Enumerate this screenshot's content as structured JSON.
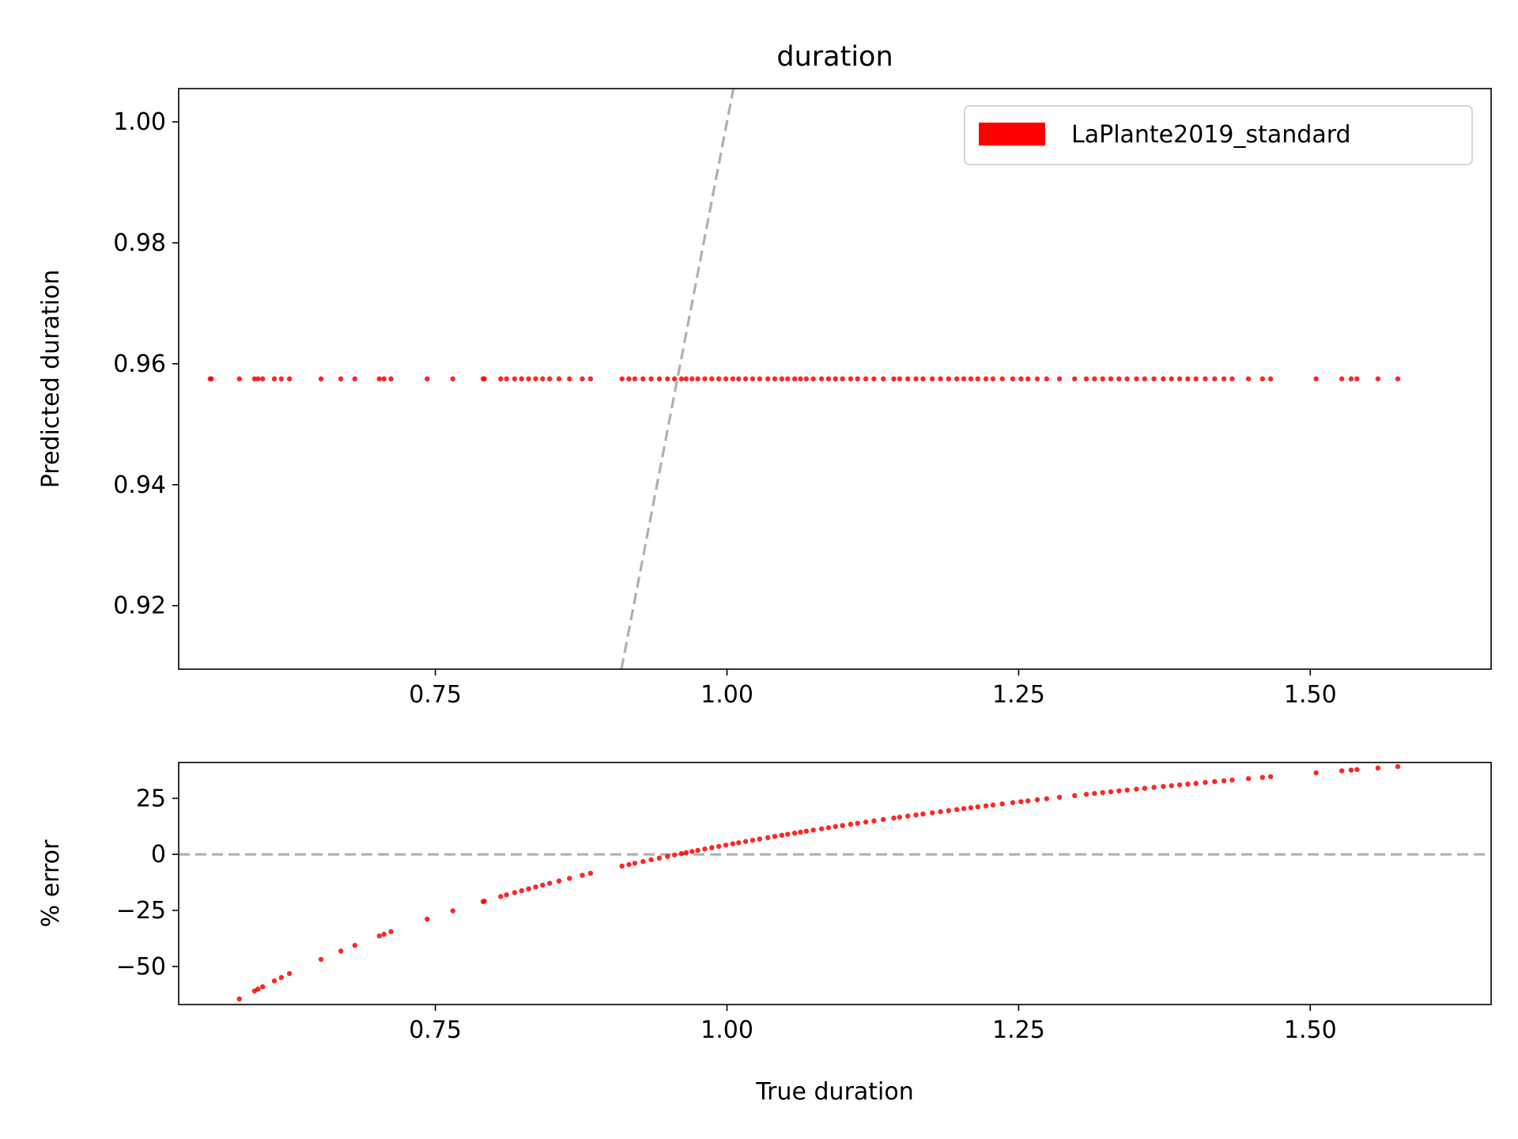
{
  "chart_data": [
    {
      "type": "scatter",
      "title": "duration",
      "xlabel": "",
      "ylabel": "Predicted duration",
      "xlim": [
        0.53,
        1.655
      ],
      "ylim": [
        0.9095,
        1.0055
      ],
      "xticks": [
        0.75,
        1.0,
        1.25,
        1.5
      ],
      "xtick_labels": [
        "0.75",
        "1.00",
        "1.25",
        "1.50"
      ],
      "yticks": [
        0.92,
        0.94,
        0.96,
        0.98,
        1.0
      ],
      "ytick_labels": [
        "0.92",
        "0.94",
        "0.96",
        "0.98",
        "1.00"
      ],
      "grid": false,
      "legend": {
        "position": "top-right",
        "entries": [
          {
            "label": "LaPlante2019_standard",
            "color": "#ff0000"
          }
        ]
      },
      "reference_line": {
        "style": "dashed",
        "color": "#b0b0b0",
        "description": "y = x"
      },
      "series": [
        {
          "name": "LaPlante2019_standard",
          "color": "#ff0000",
          "y_constant": 0.9575,
          "x": [
            0.557,
            0.558,
            0.582,
            0.595,
            0.598,
            0.602,
            0.612,
            0.618,
            0.625,
            0.652,
            0.669,
            0.681,
            0.702,
            0.706,
            0.712,
            0.743,
            0.765,
            0.791,
            0.792,
            0.806,
            0.811,
            0.818,
            0.824,
            0.83,
            0.836,
            0.842,
            0.848,
            0.856,
            0.865,
            0.876,
            0.883,
            0.91,
            0.916,
            0.921,
            0.928,
            0.935,
            0.942,
            0.949,
            0.955,
            0.961,
            0.965,
            0.97,
            0.975,
            0.981,
            0.987,
            0.993,
            0.999,
            1.005,
            1.01,
            1.016,
            1.022,
            1.028,
            1.035,
            1.041,
            1.047,
            1.052,
            1.058,
            1.063,
            1.068,
            1.074,
            1.081,
            1.087,
            1.093,
            1.099,
            1.106,
            1.112,
            1.119,
            1.126,
            1.134,
            1.143,
            1.148,
            1.155,
            1.162,
            1.168,
            1.176,
            1.183,
            1.19,
            1.197,
            1.203,
            1.209,
            1.215,
            1.222,
            1.228,
            1.236,
            1.245,
            1.252,
            1.258,
            1.266,
            1.274,
            1.285,
            1.298,
            1.308,
            1.315,
            1.322,
            1.329,
            1.336,
            1.343,
            1.351,
            1.358,
            1.366,
            1.374,
            1.381,
            1.388,
            1.395,
            1.402,
            1.41,
            1.418,
            1.426,
            1.433,
            1.447,
            1.459,
            1.466,
            1.505,
            1.527,
            1.535,
            1.54,
            1.558,
            1.575
          ]
        }
      ]
    },
    {
      "type": "scatter",
      "title": "",
      "xlabel": "True duration",
      "ylabel": "% error",
      "xlim": [
        0.53,
        1.655
      ],
      "ylim": [
        -67,
        41
      ],
      "xticks": [
        0.75,
        1.0,
        1.25,
        1.5
      ],
      "xtick_labels": [
        "0.75",
        "1.00",
        "1.25",
        "1.50"
      ],
      "yticks": [
        -50,
        -25,
        0,
        25
      ],
      "ytick_labels": [
        "−50",
        "−25",
        "0",
        "25"
      ],
      "grid": false,
      "reference_line": {
        "style": "dashed",
        "color": "#b0b0b0",
        "description": "y = 0"
      },
      "series": [
        {
          "name": "LaPlante2019_standard",
          "color": "#ff0000",
          "note": "error = (x - 0.9575) / x * 100, same x values as top panel"
        }
      ]
    }
  ]
}
